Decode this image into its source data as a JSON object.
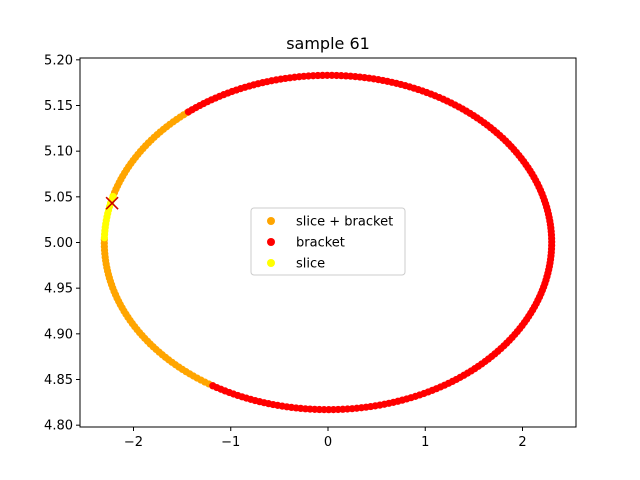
{
  "chart_data": {
    "type": "scatter",
    "title": "sample 61",
    "xlabel": "",
    "ylabel": "",
    "xlim": [
      -2.55,
      2.55
    ],
    "ylim": [
      4.798,
      5.202
    ],
    "xticks": [
      -2,
      -1,
      0,
      1,
      2
    ],
    "xtick_labels": [
      "−2",
      "−1",
      "0",
      "1",
      "2"
    ],
    "yticks": [
      4.8,
      4.85,
      4.9,
      4.95,
      5.0,
      5.05,
      5.1,
      5.15,
      5.2
    ],
    "ytick_labels": [
      "4.80",
      "4.85",
      "4.90",
      "4.95",
      "5.00",
      "5.05",
      "5.10",
      "5.15",
      "5.20"
    ],
    "grid": false,
    "legend_position": "center",
    "ellipse": {
      "center": [
        0.0,
        5.0
      ],
      "x_radius": 2.3,
      "y_radius": 0.183
    },
    "series": [
      {
        "name": "slice + bracket",
        "color": "#ffa500",
        "arcs": [
          {
            "theta_start_deg": 129,
            "theta_end_deg": 164
          },
          {
            "theta_start_deg": 179,
            "theta_end_deg": 239
          }
        ]
      },
      {
        "name": "bracket",
        "color": "#ff0000",
        "arcs": [
          {
            "theta_start_deg": 239,
            "theta_end_deg": 489
          }
        ]
      },
      {
        "name": "slice",
        "color": "#ffff00",
        "arcs": [
          {
            "theta_start_deg": 164,
            "theta_end_deg": 179
          }
        ]
      }
    ],
    "marker": {
      "symbol": "x",
      "x": -2.22,
      "y": 5.043,
      "color": "#cc0000"
    }
  }
}
